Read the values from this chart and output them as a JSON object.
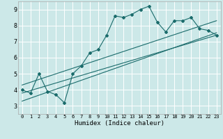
{
  "xlabel": "Humidex (Indice chaleur)",
  "bg_color": "#cce8e8",
  "line_color": "#1a6b6b",
  "grid_color": "#ffffff",
  "xlim": [
    -0.5,
    23.5
  ],
  "ylim": [
    2.5,
    9.5
  ],
  "xticks": [
    0,
    1,
    2,
    3,
    4,
    5,
    6,
    7,
    8,
    9,
    10,
    11,
    12,
    13,
    14,
    15,
    16,
    17,
    18,
    19,
    20,
    21,
    22,
    23
  ],
  "yticks": [
    3,
    4,
    5,
    6,
    7,
    8,
    9
  ],
  "line1_x": [
    0,
    1,
    2,
    3,
    4,
    5,
    6,
    7,
    8,
    9,
    10,
    11,
    12,
    13,
    14,
    15,
    16,
    17,
    18,
    19,
    20,
    21,
    22,
    23
  ],
  "line1_y": [
    4.0,
    3.8,
    5.0,
    3.9,
    3.7,
    3.2,
    5.0,
    5.5,
    6.3,
    6.5,
    7.4,
    8.6,
    8.5,
    8.7,
    9.0,
    9.2,
    8.2,
    7.6,
    8.3,
    8.3,
    8.5,
    7.8,
    7.7,
    7.4
  ],
  "line2_x": [
    0,
    23
  ],
  "line2_y": [
    3.8,
    7.4
  ],
  "line3_x": [
    0,
    23
  ],
  "line3_y": [
    4.3,
    8.3
  ],
  "line4_x": [
    0,
    23
  ],
  "line4_y": [
    3.3,
    7.55
  ]
}
